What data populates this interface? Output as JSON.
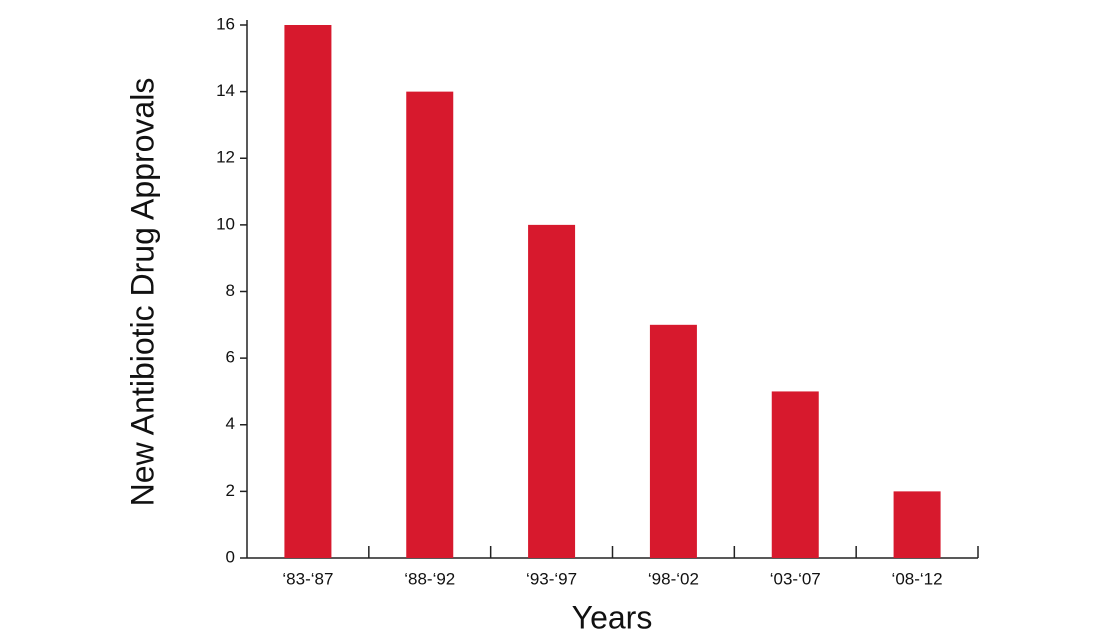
{
  "chart_data": {
    "type": "bar",
    "x_label": "Years",
    "y_label": "New Antibiotic Drug Approvals",
    "categories": [
      "‘83-‘87",
      "‘88-‘92",
      "‘93-‘97",
      "‘98-‘02",
      "‘03-‘07",
      "‘08-‘12"
    ],
    "values": [
      16,
      14,
      10,
      7,
      5,
      2
    ],
    "color": "#d7192d",
    "ylim": [
      0,
      16
    ],
    "yticks": [
      0,
      2,
      4,
      6,
      8,
      10,
      12,
      14,
      16
    ],
    "grid": false
  }
}
